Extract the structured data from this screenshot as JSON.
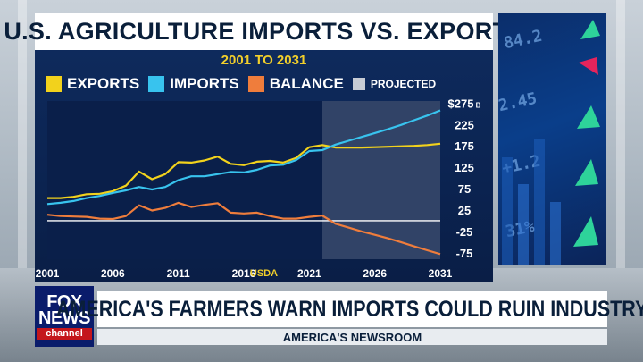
{
  "graphic": {
    "title": "U.S. AGRICULTURE IMPORTS VS. EXPORTS",
    "subtitle": "2001 TO 2031",
    "source": "USDA"
  },
  "lower_third": {
    "logo_line1": "FOX",
    "logo_line2": "NEWS",
    "logo_line3": "channel",
    "headline": "AMERICA'S FARMERS WARN IMPORTS COULD RUIN INDUSTRY",
    "show_name": "AMERICA'S NEWSROOM"
  },
  "colors": {
    "exports": "#f2d21c",
    "imports": "#38c3ee",
    "balance": "#ef7d3c",
    "projected": "#c7ccd4",
    "zero_line": "#ffffff"
  },
  "chart_data": {
    "type": "line",
    "title": "U.S. AGRICULTURE IMPORTS VS. EXPORTS",
    "subtitle": "2001 TO 2031",
    "xlabel": "",
    "ylabel": "",
    "x_ticks": [
      "2001",
      "2006",
      "2011",
      "2016",
      "2021",
      "2026",
      "2031"
    ],
    "y_ticks": [
      "$275 B",
      "225",
      "175",
      "125",
      "75",
      "25",
      "-25",
      "-75"
    ],
    "y_tick_values": [
      275,
      225,
      175,
      125,
      75,
      25,
      -25,
      -75
    ],
    "ylim": [
      -90,
      280
    ],
    "xlim": [
      2001,
      2031
    ],
    "projected_from": 2022,
    "legend": [
      "EXPORTS",
      "IMPORTS",
      "BALANCE",
      "PROJECTED"
    ],
    "legend_position": "top",
    "grid": false,
    "x": [
      2001,
      2002,
      2003,
      2004,
      2005,
      2006,
      2007,
      2008,
      2009,
      2010,
      2011,
      2012,
      2013,
      2014,
      2015,
      2016,
      2017,
      2018,
      2019,
      2020,
      2021,
      2022,
      2023,
      2024,
      2025,
      2026,
      2027,
      2028,
      2029,
      2030,
      2031
    ],
    "series": [
      {
        "name": "EXPORTS",
        "values": [
          53,
          53,
          56,
          62,
          63,
          69,
          82,
          115,
          97,
          109,
          137,
          136,
          141,
          150,
          133,
          130,
          138,
          140,
          136,
          147,
          172,
          177,
          171,
          171,
          171,
          172,
          173,
          174,
          175,
          177,
          180
        ]
      },
      {
        "name": "IMPORTS",
        "values": [
          39,
          42,
          46,
          53,
          58,
          65,
          71,
          79,
          73,
          79,
          95,
          104,
          104,
          109,
          114,
          113,
          119,
          129,
          131,
          142,
          163,
          165,
          178,
          187,
          196,
          205,
          214,
          224,
          235,
          246,
          258
        ]
      },
      {
        "name": "BALANCE",
        "values": [
          14,
          11,
          10,
          9,
          5,
          4,
          11,
          36,
          24,
          30,
          42,
          32,
          37,
          41,
          19,
          17,
          19,
          11,
          5,
          5,
          9,
          12,
          -7,
          -16,
          -25,
          -33,
          -41,
          -50,
          -60,
          -69,
          -78
        ]
      }
    ]
  }
}
